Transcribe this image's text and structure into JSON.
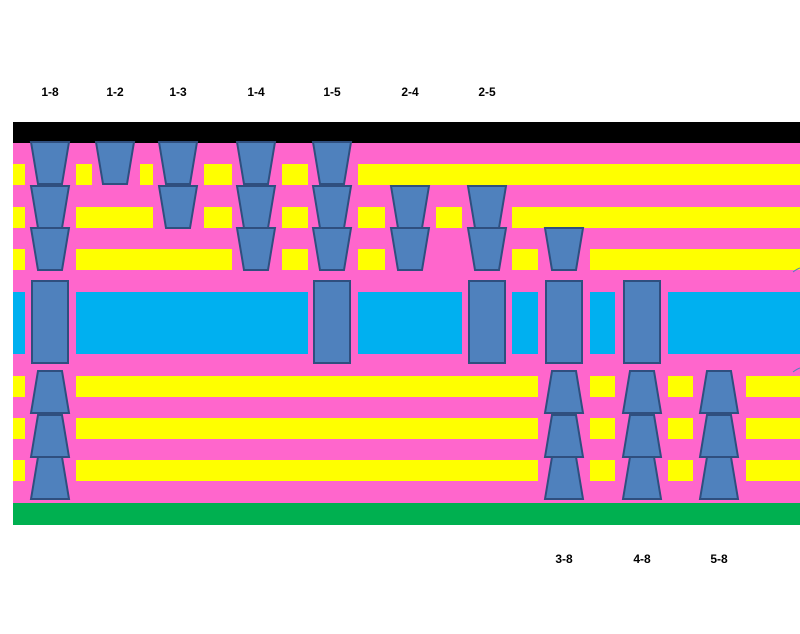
{
  "colors": {
    "top_layer": "#000000",
    "bottom_layer": "#00b050",
    "dielectric": "#ff66cc",
    "copper_trace": "#ffff00",
    "core": "#00b0f0",
    "via_fill": "#4f81bd",
    "via_stroke": "#2f4f7f",
    "callout_line": "#4f81bd"
  },
  "top_labels": [
    "1-8",
    "1-2",
    "1-3",
    "1-4",
    "1-5",
    "2-4",
    "2-5"
  ],
  "bottom_labels": [
    "3-8",
    "4-8",
    "5-8"
  ]
}
